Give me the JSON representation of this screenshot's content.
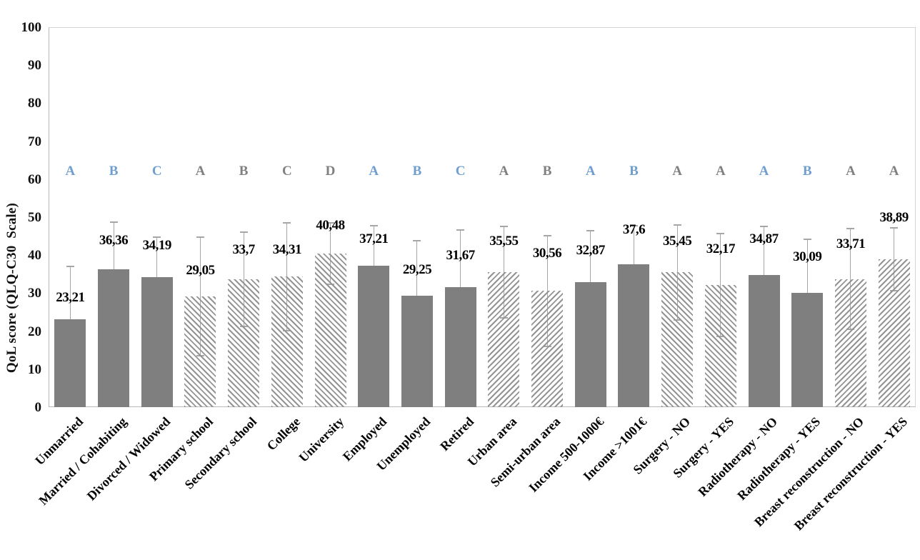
{
  "chart_data": {
    "type": "bar",
    "title": "",
    "ylabel": "QoL score (QLQ-C30  Scale)",
    "xlabel": "",
    "ylim": [
      0,
      100
    ],
    "yticks": [
      0,
      10,
      20,
      30,
      40,
      50,
      60,
      70,
      80,
      90,
      100
    ],
    "grid": false,
    "legend": "none",
    "decimal_separator": ",",
    "letters_row_y_value": 62,
    "colors": {
      "solid_bar": "#7f7f7f",
      "hatch_stripe": "#949494",
      "error_bar": "#a6a6a6",
      "letter_blue": "#6f9ecf",
      "letter_gray": "#808080",
      "axis_line": "#b9b9b9",
      "label_text": "#000000"
    },
    "categories": [
      {
        "label": "Unmarried",
        "value": 23.21,
        "value_label": "23,21",
        "err": 13.9,
        "fill": "solid",
        "letter": "A",
        "letter_color": "blue",
        "label_y": 28.8
      },
      {
        "label": "Married / Cohabiting",
        "value": 36.36,
        "value_label": "36,36",
        "err": 12.3,
        "fill": "solid",
        "letter": "B",
        "letter_color": "blue",
        "label_y": 43.8
      },
      {
        "label": "Divorced / Widowed",
        "value": 34.19,
        "value_label": "34,19",
        "err": 10.6,
        "fill": "solid",
        "letter": "C",
        "letter_color": "blue",
        "label_y": 42.5
      },
      {
        "label": "Primary school",
        "value": 29.05,
        "value_label": "29,05",
        "err": 15.6,
        "fill": "hatch-down",
        "letter": "A",
        "letter_color": "gray",
        "label_y": 35.9
      },
      {
        "label": "Secondary school",
        "value": 33.7,
        "value_label": "33,7",
        "err": 12.4,
        "fill": "hatch-down",
        "letter": "B",
        "letter_color": "gray",
        "label_y": 41.4
      },
      {
        "label": "College",
        "value": 34.31,
        "value_label": "34,31",
        "err": 14.2,
        "fill": "hatch-down",
        "letter": "C",
        "letter_color": "gray",
        "label_y": 41.4
      },
      {
        "label": "University",
        "value": 40.48,
        "value_label": "40,48",
        "err": 8.1,
        "fill": "hatch-down",
        "letter": "D",
        "letter_color": "gray",
        "label_y": 47.7
      },
      {
        "label": "Employed",
        "value": 37.21,
        "value_label": "37,21",
        "err": 10.5,
        "fill": "solid",
        "letter": "A",
        "letter_color": "blue",
        "label_y": 44.2
      },
      {
        "label": "Unemployed",
        "value": 29.25,
        "value_label": "29,25",
        "err": 14.5,
        "fill": "solid",
        "letter": "B",
        "letter_color": "blue",
        "label_y": 36.1
      },
      {
        "label": "Retired",
        "value": 31.67,
        "value_label": "31,67",
        "err": 14.9,
        "fill": "solid",
        "letter": "C",
        "letter_color": "blue",
        "label_y": 39.8
      },
      {
        "label": "Urban area",
        "value": 35.55,
        "value_label": "35,55",
        "err": 12.0,
        "fill": "hatch-up",
        "letter": "A",
        "letter_color": "gray",
        "label_y": 43.6
      },
      {
        "label": "Semi-urban area",
        "value": 30.56,
        "value_label": "30,56",
        "err": 14.6,
        "fill": "hatch-up",
        "letter": "B",
        "letter_color": "gray",
        "label_y": 40.4
      },
      {
        "label": "Income 500-1000€",
        "value": 32.87,
        "value_label": "32,87",
        "err": 13.6,
        "fill": "solid",
        "letter": "A",
        "letter_color": "blue",
        "label_y": 41.2
      },
      {
        "label": "Income >1001€",
        "value": 37.6,
        "value_label": "37,6",
        "err": 10.2,
        "fill": "solid",
        "letter": "B",
        "letter_color": "blue",
        "label_y": 46.6
      },
      {
        "label": "Surgery - NO",
        "value": 35.45,
        "value_label": "35,45",
        "err": 12.5,
        "fill": "hatch-down",
        "letter": "A",
        "letter_color": "gray",
        "label_y": 43.6
      },
      {
        "label": "Surgery - YES",
        "value": 32.17,
        "value_label": "32,17",
        "err": 13.5,
        "fill": "hatch-down",
        "letter": "A",
        "letter_color": "gray",
        "label_y": 41.5
      },
      {
        "label": "Radiotherapy - NO",
        "value": 34.87,
        "value_label": "34,87",
        "err": 12.7,
        "fill": "solid",
        "letter": "A",
        "letter_color": "blue",
        "label_y": 44.2
      },
      {
        "label": "Radiotherapy - YES",
        "value": 30.09,
        "value_label": "30,09",
        "err": 14.1,
        "fill": "solid",
        "letter": "B",
        "letter_color": "blue",
        "label_y": 39.5
      },
      {
        "label": "Breast reconstruction - NO",
        "value": 33.71,
        "value_label": "33,71",
        "err": 13.3,
        "fill": "hatch-up",
        "letter": "A",
        "letter_color": "gray",
        "label_y": 42.9
      },
      {
        "label": "Breast reconstruction - YES",
        "value": 38.89,
        "value_label": "38,89",
        "err": 8.3,
        "fill": "hatch-up",
        "letter": "A",
        "letter_color": "gray",
        "label_y": 49.8
      }
    ]
  }
}
